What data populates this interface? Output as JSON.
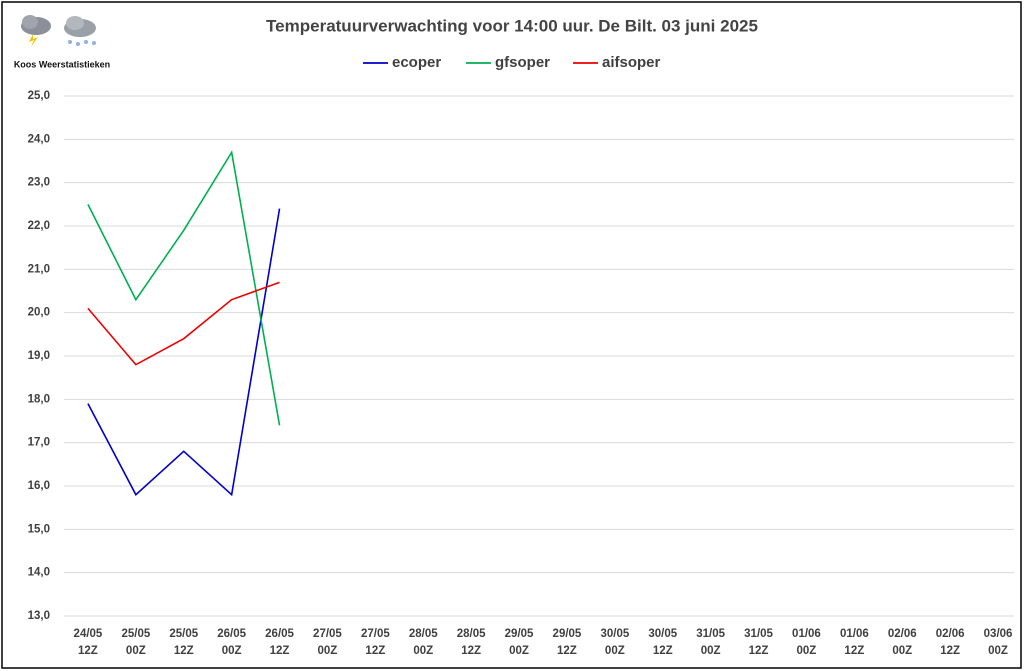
{
  "chart_data": {
    "type": "line",
    "title": "Temperatuurverwachting voor 14:00 uur. De Bilt. 03 juni 2025",
    "source": "Koos Weerstatistieken",
    "categories": [
      "24/05\n12Z",
      "25/05\n00Z",
      "25/05\n12Z",
      "26/05\n00Z",
      "26/05\n12Z",
      "27/05\n00Z",
      "27/05\n12Z",
      "28/05\n00Z",
      "28/05\n12Z",
      "29/05\n00Z",
      "29/05\n12Z",
      "30/05\n00Z",
      "30/05\n12Z",
      "31/05\n00Z",
      "31/05\n12Z",
      "01/06\n00Z",
      "01/06\n12Z",
      "02/06\n00Z",
      "02/06\n12Z",
      "03/06\n00Z"
    ],
    "series": [
      {
        "name": "ecoper",
        "color": "#0000cc",
        "values": [
          17.9,
          15.8,
          16.8,
          15.8,
          22.4,
          null,
          null,
          null,
          null,
          null,
          null,
          null,
          null,
          null,
          null,
          null,
          null,
          null,
          null,
          null
        ]
      },
      {
        "name": "gfsoper",
        "color": "#00b050",
        "values": [
          22.5,
          20.3,
          21.9,
          23.7,
          17.4,
          null,
          null,
          null,
          null,
          null,
          null,
          null,
          null,
          null,
          null,
          null,
          null,
          null,
          null,
          null
        ]
      },
      {
        "name": "aifsoper",
        "color": "#ee0000",
        "values": [
          20.1,
          18.8,
          19.4,
          20.3,
          20.7,
          null,
          null,
          null,
          null,
          null,
          null,
          null,
          null,
          null,
          null,
          null,
          null,
          null,
          null,
          null
        ]
      }
    ],
    "ylim": [
      13,
      25
    ],
    "yticks": [
      {
        "value": 13,
        "label": "13,0"
      },
      {
        "value": 14,
        "label": "14,0"
      },
      {
        "value": 15,
        "label": "15,0"
      },
      {
        "value": 16,
        "label": "16,0"
      },
      {
        "value": 17,
        "label": "17,0"
      },
      {
        "value": 18,
        "label": "18,0"
      },
      {
        "value": 19,
        "label": "19,0"
      },
      {
        "value": 20,
        "label": "20,0"
      },
      {
        "value": 21,
        "label": "21,0"
      },
      {
        "value": 22,
        "label": "22,0"
      },
      {
        "value": 23,
        "label": "23,0"
      },
      {
        "value": 24,
        "label": "24,0"
      },
      {
        "value": 25,
        "label": "25,0"
      }
    ],
    "grid": true,
    "legend": "top"
  }
}
